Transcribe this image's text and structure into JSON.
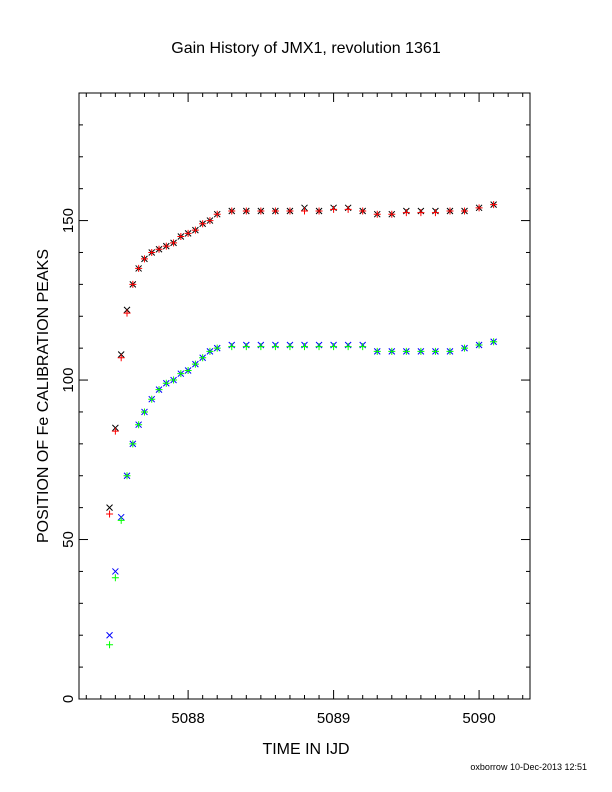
{
  "chart_data": {
    "type": "scatter",
    "title": "Gain History of JMX1, revolution 1361",
    "xlabel": "TIME IN IJD",
    "ylabel": "POSITION OF Fe CALIBRATION PEAKS",
    "footer": "oxborrow 10-Dec-2013 12:51",
    "xlim": [
      5087.25,
      5090.35
    ],
    "ylim": [
      0,
      190
    ],
    "xticks": [
      5088,
      5089,
      5090
    ],
    "xtick_labels": [
      "5088",
      "5089",
      "5090"
    ],
    "yticks": [
      0,
      50,
      100,
      150
    ],
    "ytick_labels": [
      "0",
      "50",
      "100",
      "150"
    ],
    "grid": false,
    "series": [
      {
        "marker": "x",
        "color": "#000000",
        "x": [
          5087.46,
          5087.5,
          5087.54,
          5087.58,
          5087.62,
          5087.66,
          5087.7,
          5087.75,
          5087.8,
          5087.85,
          5087.9,
          5087.95,
          5088.0,
          5088.05,
          5088.1,
          5088.15,
          5088.2,
          5088.3,
          5088.4,
          5088.5,
          5088.6,
          5088.7,
          5088.8,
          5088.9,
          5089.0,
          5089.1,
          5089.2,
          5089.3,
          5089.4,
          5089.5,
          5089.6,
          5089.7,
          5089.8,
          5089.9,
          5090.0,
          5090.1
        ],
        "y": [
          60,
          85,
          108,
          122,
          130,
          135,
          138,
          140,
          141,
          142,
          143,
          145,
          146,
          147,
          149,
          150,
          152,
          153,
          153,
          153,
          153,
          153,
          154,
          153,
          154,
          154,
          153,
          152,
          152,
          153,
          153,
          153,
          153,
          153,
          154,
          155
        ]
      },
      {
        "marker": "+",
        "color": "#ff0000",
        "x": [
          5087.46,
          5087.5,
          5087.54,
          5087.58,
          5087.62,
          5087.66,
          5087.7,
          5087.75,
          5087.8,
          5087.85,
          5087.9,
          5087.95,
          5088.0,
          5088.05,
          5088.1,
          5088.15,
          5088.2,
          5088.3,
          5088.4,
          5088.5,
          5088.6,
          5088.7,
          5088.8,
          5088.9,
          5089.0,
          5089.1,
          5089.2,
          5089.3,
          5089.4,
          5089.5,
          5089.6,
          5089.7,
          5089.8,
          5089.9,
          5090.0,
          5090.1
        ],
        "y": [
          58,
          84,
          107,
          121,
          130,
          135,
          138,
          140,
          141,
          142,
          143,
          145,
          146,
          147,
          149,
          150,
          152,
          153,
          153,
          153,
          153,
          153,
          153,
          153,
          153.5,
          153.5,
          153,
          152,
          152,
          152.5,
          152.5,
          152.5,
          153,
          153,
          154,
          155
        ]
      },
      {
        "marker": "x",
        "color": "#0000ff",
        "x": [
          5087.46,
          5087.5,
          5087.54,
          5087.58,
          5087.62,
          5087.66,
          5087.7,
          5087.75,
          5087.8,
          5087.85,
          5087.9,
          5087.95,
          5088.0,
          5088.05,
          5088.1,
          5088.15,
          5088.2,
          5088.3,
          5088.4,
          5088.5,
          5088.6,
          5088.7,
          5088.8,
          5088.9,
          5089.0,
          5089.1,
          5089.2,
          5089.3,
          5089.4,
          5089.5,
          5089.6,
          5089.7,
          5089.8,
          5089.9,
          5090.0,
          5090.1
        ],
        "y": [
          20,
          40,
          57,
          70,
          80,
          86,
          90,
          94,
          97,
          99,
          100,
          102,
          103,
          105,
          107,
          109,
          110,
          111,
          111,
          111,
          111,
          111,
          111,
          111,
          111,
          111,
          111,
          109,
          109,
          109,
          109,
          109,
          109,
          110,
          111,
          112
        ]
      },
      {
        "marker": "+",
        "color": "#00ff00",
        "x": [
          5087.46,
          5087.5,
          5087.54,
          5087.58,
          5087.62,
          5087.66,
          5087.7,
          5087.75,
          5087.8,
          5087.85,
          5087.9,
          5087.95,
          5088.0,
          5088.05,
          5088.1,
          5088.15,
          5088.2,
          5088.3,
          5088.4,
          5088.5,
          5088.6,
          5088.7,
          5088.8,
          5088.9,
          5089.0,
          5089.1,
          5089.2,
          5089.3,
          5089.4,
          5089.5,
          5089.6,
          5089.7,
          5089.8,
          5089.9,
          5090.0,
          5090.1
        ],
        "y": [
          17,
          38,
          56,
          70,
          80,
          86,
          90,
          94,
          97,
          99,
          100,
          102,
          103,
          105,
          107,
          109,
          110,
          110.5,
          110.5,
          110.5,
          110.5,
          110.5,
          110.5,
          110.5,
          110.5,
          110.5,
          110.5,
          109,
          109,
          109,
          109,
          109,
          109,
          110,
          111,
          112
        ]
      }
    ]
  }
}
